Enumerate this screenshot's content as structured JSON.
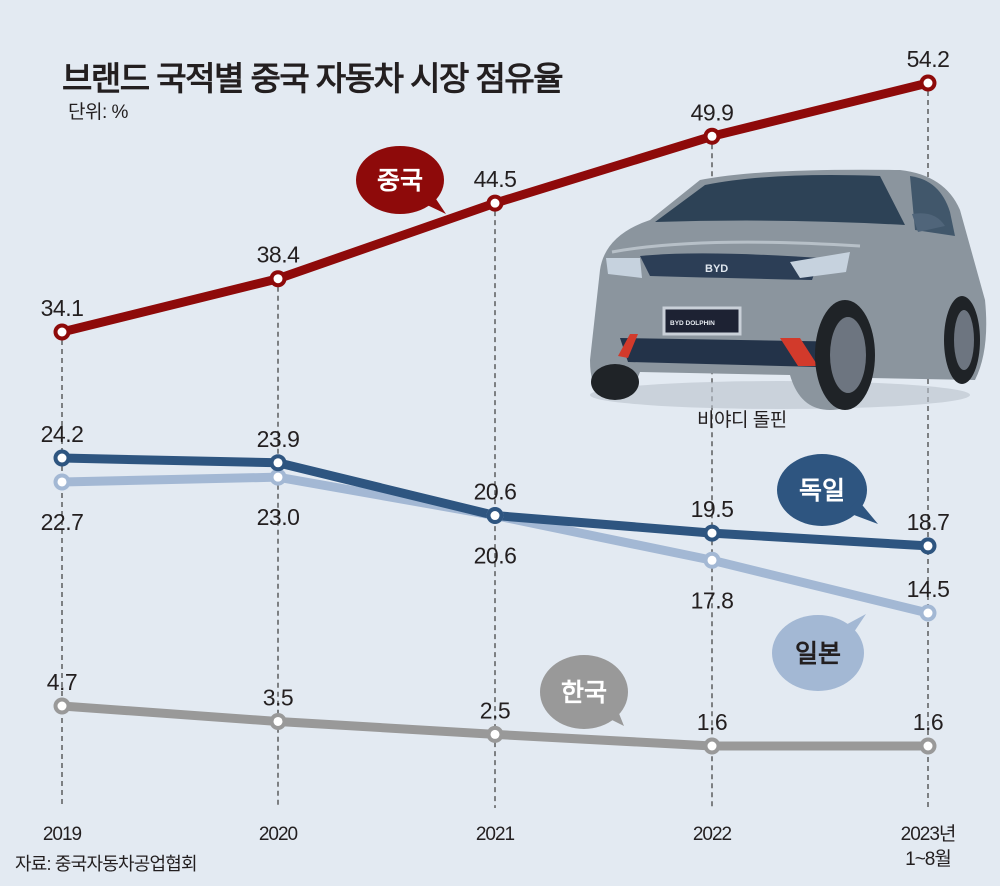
{
  "header": {
    "title": "브랜드 국적별 중국 자동차 시장 점유율",
    "unit": "단위: %"
  },
  "photo": {
    "caption": "비야디 돌핀",
    "car_logo_text": "BYD",
    "car_plate_text": "BYD DOLPHIN"
  },
  "footer": {
    "source": "자료: 중국자동차공업협회"
  },
  "colors": {
    "background": "#e3eaf2",
    "china": "#8e0a0a",
    "germany": "#2e5580",
    "japan": "#a3b8d4",
    "korea": "#999999"
  },
  "chart_data": {
    "type": "line",
    "title": "브랜드 국적별 중국 자동차 시장 점유율",
    "ylabel": "단위: %",
    "xlabel": "",
    "categories": [
      "2019",
      "2020",
      "2021",
      "2022",
      "2023년|1~8월"
    ],
    "y_axis": "none (broken scale, values shown as data labels)",
    "grid": "vertical dashed guide per category",
    "series": [
      {
        "name": "중국",
        "color_key": "china",
        "values": [
          34.1,
          38.4,
          44.5,
          49.9,
          54.2
        ],
        "labels": [
          "34.1",
          "38.4",
          "44.5",
          "49.9",
          "54.2"
        ],
        "label_pos": [
          "above",
          "above",
          "above",
          "above",
          "above"
        ]
      },
      {
        "name": "독일",
        "color_key": "germany",
        "values": [
          24.2,
          23.9,
          20.6,
          19.5,
          18.7
        ],
        "labels": [
          "24.2",
          "23.9",
          "20.6",
          "19.5",
          "18.7"
        ],
        "label_pos": [
          "above",
          "above",
          "above",
          "above",
          "above"
        ]
      },
      {
        "name": "일본",
        "color_key": "japan",
        "values": [
          22.7,
          23.0,
          20.6,
          17.8,
          14.5
        ],
        "labels": [
          "22.7",
          "23.0",
          "20.6",
          "17.8",
          "14.5"
        ],
        "label_pos": [
          "below",
          "below",
          "below",
          "below",
          "above"
        ]
      },
      {
        "name": "한국",
        "color_key": "korea",
        "values": [
          4.7,
          3.5,
          2.5,
          1.6,
          1.6
        ],
        "labels": [
          "4.7",
          "3.5",
          "2.5",
          "1.6",
          "1.6"
        ],
        "label_pos": [
          "above",
          "above",
          "above",
          "above",
          "above"
        ]
      }
    ],
    "scale_bands": [
      {
        "series": [
          "중국"
        ],
        "domain": [
          34.1,
          54.2
        ]
      },
      {
        "series": [
          "독일",
          "일본"
        ],
        "domain": [
          14.5,
          24.2
        ]
      },
      {
        "series": [
          "한국"
        ],
        "domain": [
          1.6,
          4.7
        ]
      }
    ]
  }
}
